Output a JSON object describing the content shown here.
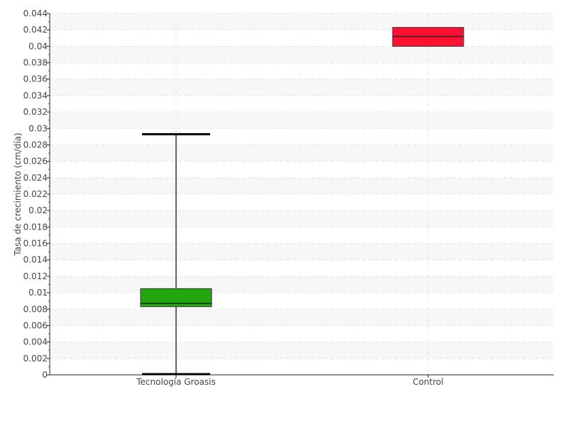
{
  "chart_data": {
    "type": "box",
    "ylabel": "Tasa de crecimiento (cm/día)",
    "xlabel": "",
    "ylim": [
      0,
      0.044
    ],
    "ytick_step": 0.002,
    "yticks": [
      "0",
      "0.002",
      "0.004",
      "0.006",
      "0.008",
      "0.01",
      "0.012",
      "0.014",
      "0.016",
      "0.018",
      "0.02",
      "0.022",
      "0.024",
      "0.026",
      "0.028",
      "0.03",
      "0.032",
      "0.034",
      "0.036",
      "0.038",
      "0.04",
      "0.042",
      "0.044"
    ],
    "grid": true,
    "categories": [
      "Tecnología Groasis",
      "Control"
    ],
    "boxes": [
      {
        "label": "Tecnología Groasis",
        "min": 0.0,
        "q1": 0.0083,
        "median": 0.0087,
        "q3": 0.0105,
        "max": 0.0293,
        "color": "#22a70e"
      },
      {
        "label": "Control",
        "min": 0.04,
        "q1": 0.04,
        "median": 0.0412,
        "q3": 0.0423,
        "max": 0.0423,
        "color": "#ff1030"
      }
    ]
  }
}
